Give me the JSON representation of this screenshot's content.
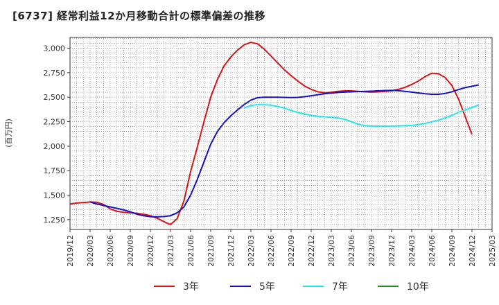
{
  "title": "[6737]  経常利益12か月移動合計の標準偏差の推移",
  "chart_data": {
    "type": "line",
    "title": "[6737]  経常利益12か月移動合計の標準偏差の推移",
    "xlabel": "",
    "ylabel": "(百万円)",
    "x_ticks": [
      "2019/12",
      "2020/03",
      "2020/06",
      "2020/09",
      "2020/12",
      "2021/03",
      "2021/06",
      "2021/09",
      "2021/12",
      "2022/03",
      "2022/06",
      "2022/09",
      "2022/12",
      "2023/03",
      "2023/06",
      "2023/09",
      "2023/12",
      "2024/03",
      "2024/06",
      "2024/09",
      "2024/12",
      "2025/03"
    ],
    "y_ticks": [
      1250,
      1500,
      1750,
      2000,
      2250,
      2500,
      2750,
      3000
    ],
    "y_tick_labels": [
      "1,250",
      "1,500",
      "1,750",
      "2,000",
      "2,250",
      "2,500",
      "2,750",
      "3,000"
    ],
    "ylim": [
      1150,
      3110
    ],
    "grid": true,
    "legend_position": "bottom",
    "series": [
      {
        "name": "3年",
        "color": "#dd1111",
        "points": [
          [
            "2019/12",
            1410
          ],
          [
            "2020/01",
            1420
          ],
          [
            "2020/02",
            1425
          ],
          [
            "2020/03",
            1430
          ],
          [
            "2020/04",
            1428
          ],
          [
            "2020/05",
            1405
          ],
          [
            "2020/06",
            1360
          ],
          [
            "2020/07",
            1335
          ],
          [
            "2020/08",
            1325
          ],
          [
            "2020/09",
            1320
          ],
          [
            "2020/10",
            1315
          ],
          [
            "2020/11",
            1305
          ],
          [
            "2020/12",
            1290
          ],
          [
            "2021/01",
            1265
          ],
          [
            "2021/02",
            1230
          ],
          [
            "2021/03",
            1200
          ],
          [
            "2021/04",
            1260
          ],
          [
            "2021/05",
            1440
          ],
          [
            "2021/06",
            1740
          ],
          [
            "2021/07",
            1990
          ],
          [
            "2021/08",
            2250
          ],
          [
            "2021/09",
            2500
          ],
          [
            "2021/10",
            2680
          ],
          [
            "2021/11",
            2820
          ],
          [
            "2021/12",
            2910
          ],
          [
            "2022/01",
            2980
          ],
          [
            "2022/02",
            3035
          ],
          [
            "2022/03",
            3060
          ],
          [
            "2022/04",
            3045
          ],
          [
            "2022/05",
            2990
          ],
          [
            "2022/06",
            2920
          ],
          [
            "2022/07",
            2850
          ],
          [
            "2022/08",
            2780
          ],
          [
            "2022/09",
            2720
          ],
          [
            "2022/10",
            2665
          ],
          [
            "2022/11",
            2615
          ],
          [
            "2022/12",
            2580
          ],
          [
            "2023/01",
            2555
          ],
          [
            "2023/02",
            2545
          ],
          [
            "2023/03",
            2550
          ],
          [
            "2023/04",
            2560
          ],
          [
            "2023/05",
            2565
          ],
          [
            "2023/06",
            2565
          ],
          [
            "2023/07",
            2560
          ],
          [
            "2023/08",
            2555
          ],
          [
            "2023/09",
            2552
          ],
          [
            "2023/10",
            2555
          ],
          [
            "2023/11",
            2560
          ],
          [
            "2023/12",
            2565
          ],
          [
            "2024/01",
            2580
          ],
          [
            "2024/02",
            2600
          ],
          [
            "2024/03",
            2630
          ],
          [
            "2024/04",
            2665
          ],
          [
            "2024/05",
            2710
          ],
          [
            "2024/06",
            2745
          ],
          [
            "2024/07",
            2740
          ],
          [
            "2024/08",
            2700
          ],
          [
            "2024/09",
            2620
          ],
          [
            "2024/10",
            2480
          ],
          [
            "2024/11",
            2300
          ],
          [
            "2024/12",
            2120
          ]
        ]
      },
      {
        "name": "5年",
        "color": "#1111cc",
        "points": [
          [
            "2020/03",
            1430
          ],
          [
            "2020/04",
            1410
          ],
          [
            "2020/05",
            1395
          ],
          [
            "2020/06",
            1380
          ],
          [
            "2020/07",
            1365
          ],
          [
            "2020/08",
            1350
          ],
          [
            "2020/09",
            1330
          ],
          [
            "2020/10",
            1305
          ],
          [
            "2020/11",
            1290
          ],
          [
            "2020/12",
            1280
          ],
          [
            "2021/01",
            1278
          ],
          [
            "2021/02",
            1282
          ],
          [
            "2021/03",
            1290
          ],
          [
            "2021/04",
            1320
          ],
          [
            "2021/05",
            1380
          ],
          [
            "2021/06",
            1500
          ],
          [
            "2021/07",
            1660
          ],
          [
            "2021/08",
            1840
          ],
          [
            "2021/09",
            2020
          ],
          [
            "2021/10",
            2150
          ],
          [
            "2021/11",
            2240
          ],
          [
            "2021/12",
            2310
          ],
          [
            "2022/01",
            2370
          ],
          [
            "2022/02",
            2425
          ],
          [
            "2022/03",
            2470
          ],
          [
            "2022/04",
            2495
          ],
          [
            "2022/05",
            2500
          ],
          [
            "2022/06",
            2500
          ],
          [
            "2022/07",
            2500
          ],
          [
            "2022/08",
            2498
          ],
          [
            "2022/09",
            2496
          ],
          [
            "2022/10",
            2498
          ],
          [
            "2022/11",
            2505
          ],
          [
            "2022/12",
            2515
          ],
          [
            "2023/01",
            2525
          ],
          [
            "2023/02",
            2535
          ],
          [
            "2023/03",
            2542
          ],
          [
            "2023/04",
            2548
          ],
          [
            "2023/05",
            2552
          ],
          [
            "2023/06",
            2555
          ],
          [
            "2023/07",
            2558
          ],
          [
            "2023/08",
            2560
          ],
          [
            "2023/09",
            2562
          ],
          [
            "2023/10",
            2565
          ],
          [
            "2023/11",
            2568
          ],
          [
            "2023/12",
            2570
          ],
          [
            "2024/01",
            2567
          ],
          [
            "2024/02",
            2560
          ],
          [
            "2024/03",
            2552
          ],
          [
            "2024/04",
            2543
          ],
          [
            "2024/05",
            2535
          ],
          [
            "2024/06",
            2530
          ],
          [
            "2024/07",
            2530
          ],
          [
            "2024/08",
            2538
          ],
          [
            "2024/09",
            2555
          ],
          [
            "2024/10",
            2578
          ],
          [
            "2024/11",
            2598
          ],
          [
            "2024/12",
            2612
          ],
          [
            "2025/01",
            2625
          ]
        ]
      },
      {
        "name": "7年",
        "color": "#22e5ee",
        "points": [
          [
            "2022/02",
            2390
          ],
          [
            "2022/03",
            2415
          ],
          [
            "2022/04",
            2425
          ],
          [
            "2022/05",
            2425
          ],
          [
            "2022/06",
            2418
          ],
          [
            "2022/07",
            2405
          ],
          [
            "2022/08",
            2388
          ],
          [
            "2022/09",
            2365
          ],
          [
            "2022/10",
            2345
          ],
          [
            "2022/11",
            2328
          ],
          [
            "2022/12",
            2315
          ],
          [
            "2023/01",
            2305
          ],
          [
            "2023/02",
            2300
          ],
          [
            "2023/03",
            2295
          ],
          [
            "2023/04",
            2288
          ],
          [
            "2023/05",
            2275
          ],
          [
            "2023/06",
            2250
          ],
          [
            "2023/07",
            2225
          ],
          [
            "2023/08",
            2210
          ],
          [
            "2023/09",
            2206
          ],
          [
            "2023/10",
            2205
          ],
          [
            "2023/11",
            2205
          ],
          [
            "2023/12",
            2205
          ],
          [
            "2024/01",
            2207
          ],
          [
            "2024/02",
            2210
          ],
          [
            "2024/03",
            2213
          ],
          [
            "2024/04",
            2220
          ],
          [
            "2024/05",
            2232
          ],
          [
            "2024/06",
            2248
          ],
          [
            "2024/07",
            2265
          ],
          [
            "2024/08",
            2288
          ],
          [
            "2024/09",
            2315
          ],
          [
            "2024/10",
            2345
          ],
          [
            "2024/11",
            2370
          ],
          [
            "2024/12",
            2395
          ],
          [
            "2025/01",
            2420
          ]
        ]
      },
      {
        "name": "10年",
        "color": "#228822",
        "points": []
      }
    ]
  }
}
